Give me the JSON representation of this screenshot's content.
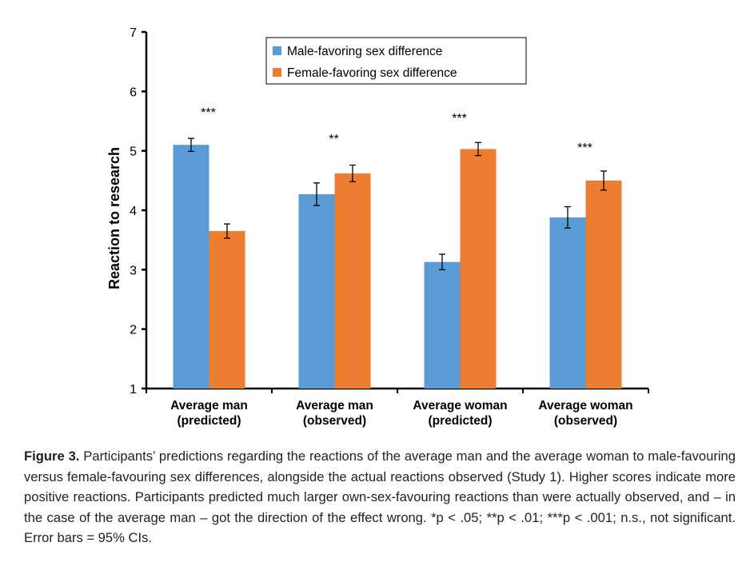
{
  "chart_data": {
    "type": "bar",
    "title": "",
    "xlabel": "",
    "ylabel": "Reaction to research",
    "ylim": [
      1,
      7
    ],
    "yticks": [
      1,
      2,
      3,
      4,
      5,
      6,
      7
    ],
    "grid": false,
    "legend_position": "top-center",
    "categories": [
      [
        "Average man",
        "(predicted)"
      ],
      [
        "Average man",
        "(observed)"
      ],
      [
        "Average woman",
        "(predicted)"
      ],
      [
        "Average woman",
        "(observed)"
      ]
    ],
    "series": [
      {
        "name": "Male-favoring sex difference",
        "color": "#5b9bd5",
        "values": [
          5.1,
          4.27,
          3.13,
          3.88
        ],
        "error": [
          0.11,
          0.19,
          0.13,
          0.18
        ]
      },
      {
        "name": "Female-favoring sex difference",
        "color": "#ed7d31",
        "values": [
          3.65,
          4.62,
          5.03,
          4.5
        ],
        "error": [
          0.12,
          0.14,
          0.11,
          0.16
        ]
      }
    ],
    "annotations": [
      {
        "label": "***",
        "y": 5.68
      },
      {
        "label": "**",
        "y": 5.24
      },
      {
        "label": "***",
        "y": 5.59
      },
      {
        "label": "***",
        "y": 5.09
      }
    ]
  },
  "caption": {
    "label": "Figure 3.",
    "text": " Participants’ predictions regarding the reactions of the average man and the average woman to male-favouring versus female-favouring sex differences, alongside the actual reactions observed (Study 1). Higher scores indicate more positive reactions. Participants predicted much larger own-sex-favouring reactions than were actually observed, and – in the case of the average man – got the direction of the effect wrong. *p < .05; **p < .01; ***p < .001; n.s., not significant. Error bars = 95% CIs."
  }
}
